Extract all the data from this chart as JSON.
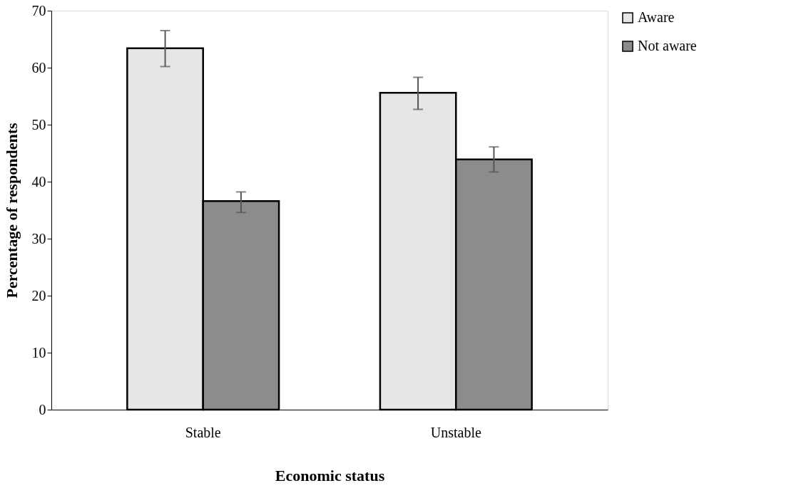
{
  "chart_data": {
    "type": "bar",
    "xlabel": "Economic status",
    "ylabel": "Percentage of respondents",
    "categories": [
      "Stable",
      "Unstable"
    ],
    "series": [
      {
        "name": "Aware",
        "color": "#e6e6e6",
        "values": [
          63.4,
          55.6
        ],
        "errors": [
          [
            60.2,
            66.5
          ],
          [
            52.7,
            58.3
          ]
        ]
      },
      {
        "name": "Not aware",
        "color": "#8c8c8c",
        "values": [
          36.6,
          43.9
        ],
        "errors": [
          [
            34.6,
            38.2
          ],
          [
            41.7,
            46.1
          ]
        ]
      }
    ],
    "ylim": [
      0,
      70
    ],
    "yticks": [
      0,
      10,
      20,
      30,
      40,
      50,
      60,
      70
    ],
    "grid": false,
    "legend": "right"
  }
}
